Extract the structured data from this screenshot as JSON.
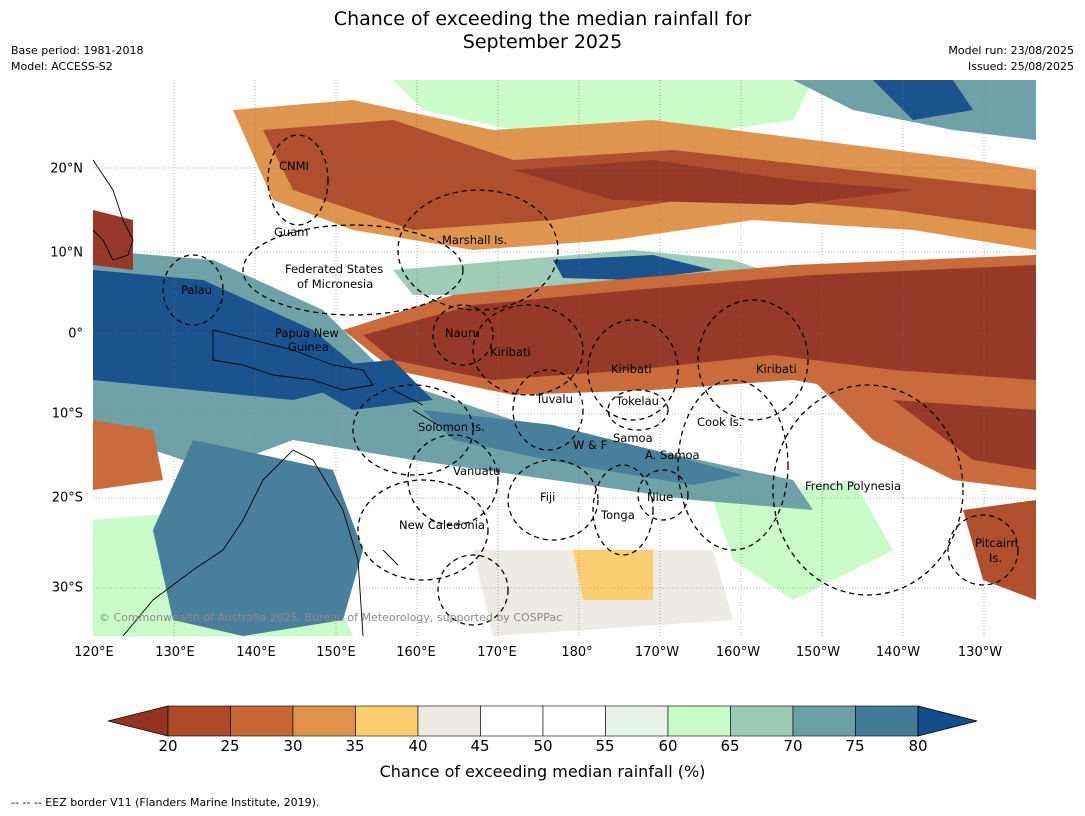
{
  "title": {
    "line1": "Chance of exceeding the median rainfall for",
    "line2": "September 2025"
  },
  "meta": {
    "base_period": "Base period: 1981-2018",
    "model": "Model: ACCESS-S2",
    "model_run": "Model run: 23/08/2025",
    "issued": "Issued: 25/08/2025"
  },
  "map": {
    "lon_ticks": [
      "120°E",
      "130°E",
      "140°E",
      "150°E",
      "160°E",
      "170°E",
      "180°",
      "170°W",
      "160°W",
      "150°W",
      "140°W",
      "130°W"
    ],
    "lat_ticks": [
      "20°N",
      "10°N",
      "0°",
      "10°S",
      "20°S",
      "30°S"
    ],
    "places": [
      "CNMI",
      "Guam",
      "Marshall Is.",
      "Federated States",
      "of Micronesia",
      "Palau",
      "Papua New",
      "Guinea",
      "Nauru",
      "Kiribati",
      "Kiribati",
      "Kiribati",
      "Tuvalu",
      "Tokelau",
      "Solomon Is.",
      "Cook Is.",
      "W & F",
      "Samoa",
      "A. Samoa",
      "Vanuatu",
      "Fiji",
      "Niue",
      "Tonga",
      "New Caledonia",
      "French Polynesia",
      "Pitcairn",
      "Is."
    ],
    "copyright": "© Commonwealth of Australia 2025, Bureau of Meteorology, supported by COSPPac"
  },
  "colorbar": {
    "labels": [
      "20",
      "25",
      "30",
      "35",
      "40",
      "45",
      "50",
      "55",
      "60",
      "65",
      "70",
      "75",
      "80"
    ],
    "colors": [
      "#943322",
      "#ad4a27",
      "#c86735",
      "#e0924a",
      "#fccd6e",
      "#eeebe6",
      "#ffffff",
      "#ffffff",
      "#e6f5e7",
      "#c8fcc8",
      "#9ccbb5",
      "#6aa0a5",
      "#437b97",
      "#134e8a"
    ],
    "title": "Chance of exceeding median rainfall (%)"
  },
  "footer": "--  --  -- EEZ border V11 (Flanders Marine Institute, 2019)."
}
